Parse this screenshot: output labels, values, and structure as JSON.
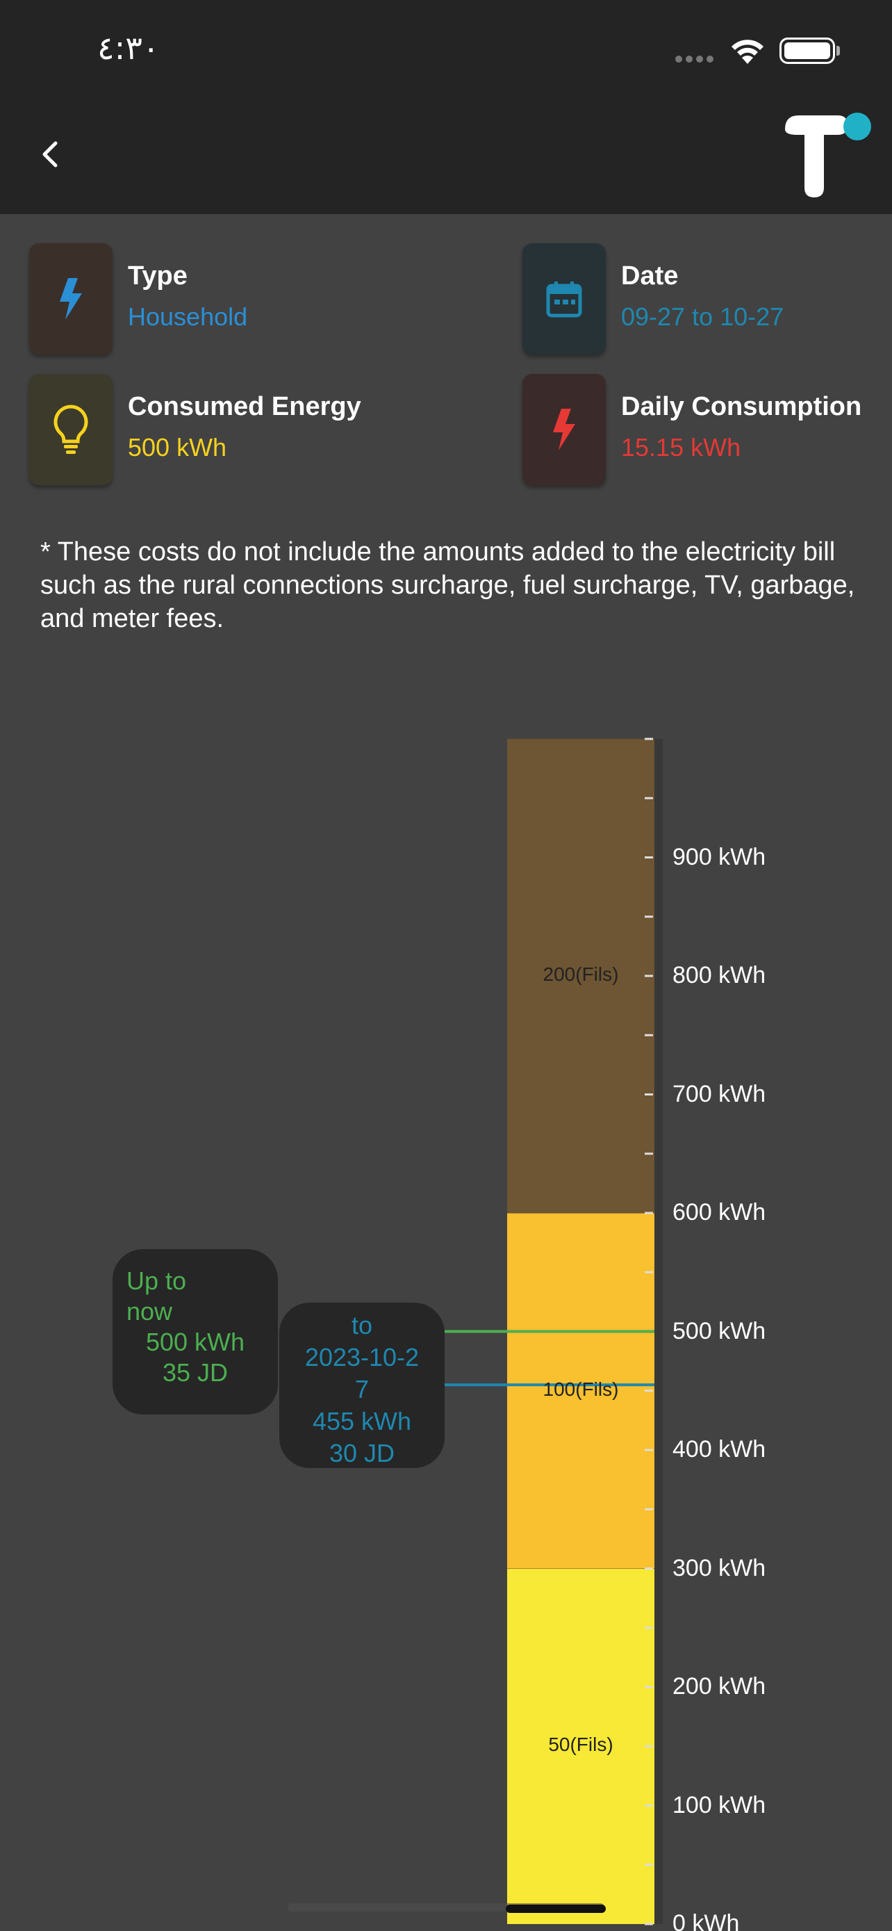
{
  "status_bar": {
    "time": "٤:٣٠"
  },
  "info": {
    "type": {
      "title": "Type",
      "value": "Household",
      "icon": "bolt-icon",
      "color": "#2b8fd6"
    },
    "date": {
      "title": "Date",
      "value": "09-27 to 10-27",
      "icon": "calendar-icon",
      "color": "#1e88b0"
    },
    "consumed": {
      "title": "Consumed Energy",
      "value": "500 kWh",
      "icon": "lightbulb-icon",
      "color": "#f5d21f"
    },
    "daily": {
      "title": "Daily Consumption",
      "value": "15.15 kWh",
      "icon": "bolt-red-icon",
      "color": "#e53935"
    }
  },
  "note": "* These costs do not include the amounts added to the electricity bill such as the rural connections surcharge, fuel surcharge, TV, garbage, and meter fees.",
  "tiers": [
    {
      "label": "50(Fils)",
      "from": 0,
      "to": 300,
      "color": "#f7e935"
    },
    {
      "label": "100(Fils)",
      "from": 300,
      "to": 600,
      "color": "#f9c02f"
    },
    {
      "label": "200(Fils)",
      "from": 600,
      "to": 1000,
      "color": "#6e5533"
    }
  ],
  "axis": {
    "max": 1000,
    "labels": [
      "0 kWh",
      "100 kWh",
      "200 kWh",
      "300 kWh",
      "400 kWh",
      "500 kWh",
      "600 kWh",
      "700 kWh",
      "800 kWh",
      "900 kWh"
    ]
  },
  "markers": {
    "current": {
      "value": 500,
      "color": "#4caf50",
      "line1": "Up to",
      "line2": "now",
      "kwh": "500 kWh",
      "cost": "35 JD"
    },
    "forecast": {
      "value": 455,
      "color": "#1e88b0",
      "line1": "to",
      "date1": "2023-10-2",
      "date2": "7",
      "kwh": "455 kWh",
      "cost": "30 JD"
    }
  }
}
